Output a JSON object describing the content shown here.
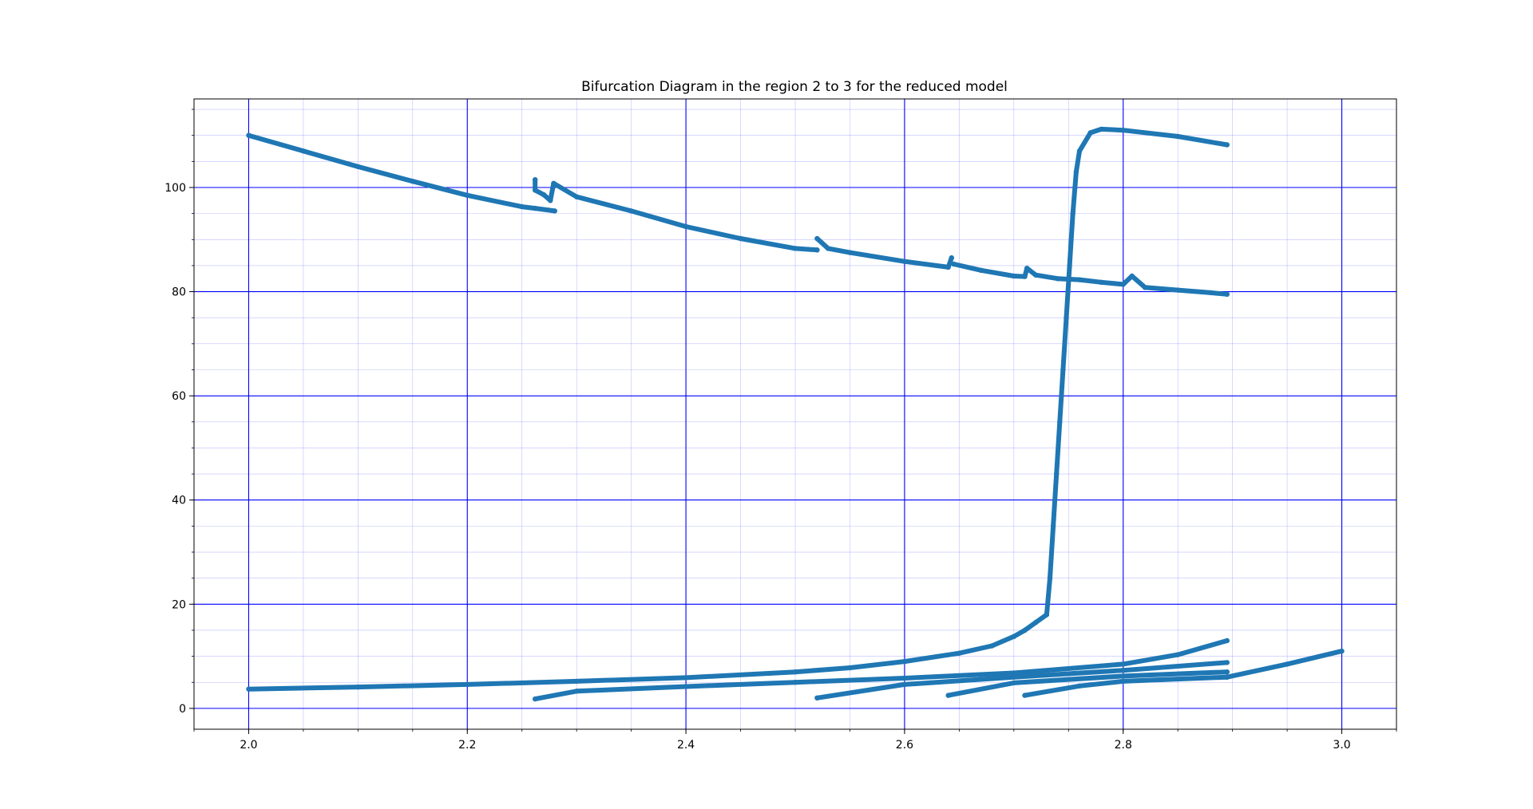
{
  "chart_data": {
    "type": "scatter",
    "title": "Bifurcation Diagram in the region 2 to 3 for the reduced model",
    "xlabel": "",
    "ylabel": "",
    "xlim": [
      1.95,
      3.05
    ],
    "ylim": [
      -4,
      117
    ],
    "x_ticks": [
      "2.0",
      "2.2",
      "2.4",
      "2.6",
      "2.8",
      "3.0"
    ],
    "y_ticks": [
      "0",
      "20",
      "40",
      "60",
      "80",
      "100"
    ],
    "x_tick_values": [
      2.0,
      2.2,
      2.4,
      2.6,
      2.8,
      3.0
    ],
    "y_tick_values": [
      0,
      20,
      40,
      60,
      80,
      100
    ],
    "grid": {
      "major": true,
      "minor": true
    },
    "marker_color": "#1f77b4",
    "grid_color": "#0000ff",
    "series": [
      {
        "points": [
          [
            2.0,
            110.0
          ],
          [
            2.05,
            107.0
          ],
          [
            2.1,
            104.0
          ],
          [
            2.15,
            101.2
          ],
          [
            2.2,
            98.5
          ],
          [
            2.25,
            96.3
          ],
          [
            2.262,
            96.0
          ],
          [
            2.28,
            95.5
          ]
        ]
      },
      {
        "points": [
          [
            2.262,
            101.5
          ],
          [
            2.262,
            99.5
          ],
          [
            2.27,
            98.6
          ],
          [
            2.276,
            97.5
          ],
          [
            2.279,
            100.8
          ],
          [
            2.3,
            98.2
          ],
          [
            2.35,
            95.5
          ],
          [
            2.4,
            92.5
          ],
          [
            2.45,
            90.2
          ],
          [
            2.5,
            88.3
          ],
          [
            2.52,
            88.0
          ]
        ]
      },
      {
        "points": [
          [
            2.52,
            90.2
          ],
          [
            2.53,
            88.3
          ],
          [
            2.55,
            87.5
          ],
          [
            2.6,
            85.8
          ],
          [
            2.64,
            84.7
          ],
          [
            2.643,
            86.5
          ]
        ]
      },
      {
        "points": [
          [
            2.645,
            85.3
          ],
          [
            2.67,
            84.1
          ],
          [
            2.7,
            83.0
          ],
          [
            2.71,
            82.9
          ],
          [
            2.712,
            84.5
          ],
          [
            2.72,
            83.2
          ],
          [
            2.74,
            82.5
          ],
          [
            2.76,
            82.3
          ],
          [
            2.78,
            81.8
          ],
          [
            2.8,
            81.4
          ],
          [
            2.808,
            83.0
          ],
          [
            2.82,
            80.8
          ],
          [
            2.85,
            80.3
          ],
          [
            2.88,
            79.8
          ],
          [
            2.895,
            79.5
          ]
        ]
      },
      {
        "points": [
          [
            2.0,
            3.7
          ],
          [
            2.1,
            4.1
          ],
          [
            2.2,
            4.6
          ],
          [
            2.3,
            5.2
          ],
          [
            2.4,
            5.9
          ],
          [
            2.5,
            7.0
          ],
          [
            2.55,
            7.8
          ],
          [
            2.6,
            9.0
          ],
          [
            2.65,
            10.6
          ],
          [
            2.68,
            12.0
          ],
          [
            2.7,
            13.8
          ],
          [
            2.71,
            15.0
          ],
          [
            2.72,
            16.5
          ],
          [
            2.73,
            18.0
          ]
        ]
      },
      {
        "points": [
          [
            2.73,
            18
          ],
          [
            2.733,
            25
          ],
          [
            2.736,
            35
          ],
          [
            2.739,
            45
          ],
          [
            2.742,
            55
          ],
          [
            2.745,
            65
          ],
          [
            2.748,
            75
          ],
          [
            2.751,
            85
          ],
          [
            2.754,
            95
          ],
          [
            2.757,
            103
          ],
          [
            2.76,
            107
          ],
          [
            2.77,
            110.5
          ],
          [
            2.78,
            111.2
          ],
          [
            2.8,
            111.0
          ],
          [
            2.85,
            109.8
          ],
          [
            2.895,
            108.2
          ]
        ]
      },
      {
        "points": [
          [
            2.262,
            1.8
          ],
          [
            2.3,
            3.3
          ],
          [
            2.4,
            4.2
          ],
          [
            2.5,
            5.0
          ],
          [
            2.6,
            5.8
          ],
          [
            2.7,
            6.8
          ],
          [
            2.8,
            8.5
          ],
          [
            2.85,
            10.3
          ],
          [
            2.895,
            13.0
          ]
        ]
      },
      {
        "points": [
          [
            2.52,
            2.0
          ],
          [
            2.6,
            4.6
          ],
          [
            2.7,
            6.0
          ],
          [
            2.8,
            7.3
          ],
          [
            2.895,
            8.8
          ]
        ]
      },
      {
        "points": [
          [
            2.64,
            2.5
          ],
          [
            2.7,
            4.9
          ],
          [
            2.8,
            6.2
          ],
          [
            2.895,
            7.0
          ]
        ]
      },
      {
        "points": [
          [
            2.71,
            2.5
          ],
          [
            2.76,
            4.3
          ],
          [
            2.8,
            5.2
          ],
          [
            2.895,
            6.0
          ]
        ]
      },
      {
        "points": [
          [
            2.895,
            6.0
          ],
          [
            2.95,
            8.5
          ],
          [
            3.0,
            11.0
          ]
        ]
      }
    ]
  }
}
